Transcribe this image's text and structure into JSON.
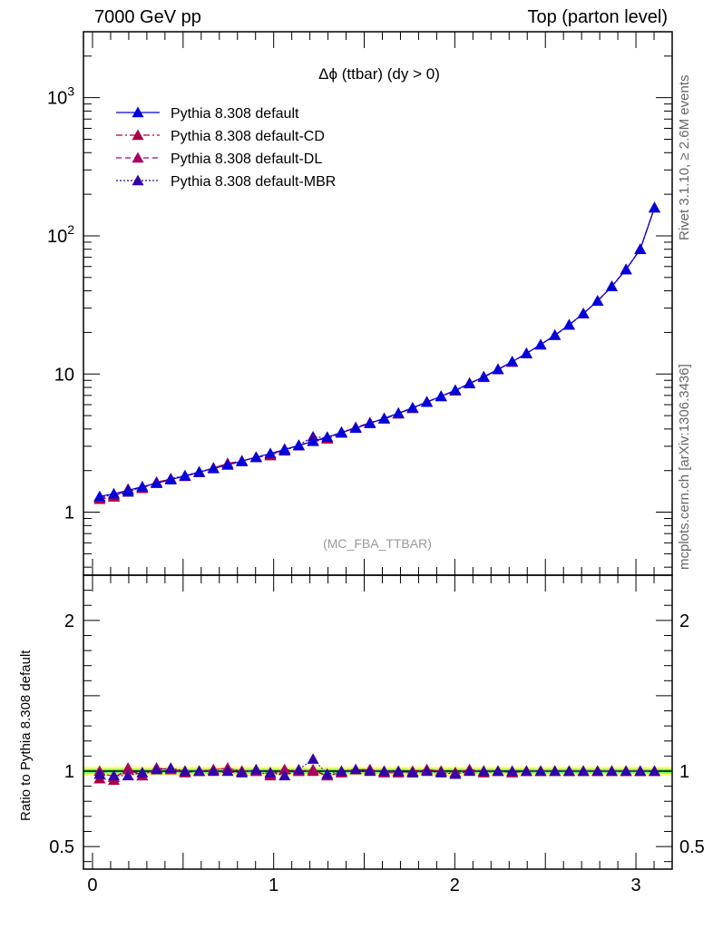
{
  "header": {
    "left": "7000 GeV pp",
    "right": "Top (parton level)"
  },
  "side_labels": {
    "rivet": "Rivet 3.1.10, ≥ 2.6M events",
    "mcplots": "mcplots.cern.ch [arXiv:1306.3436]"
  },
  "colors": {
    "default": "#0000dd",
    "cd": "#aa0044",
    "dl": "#aa0066",
    "mbr": "#3300aa",
    "band_inner": "#66ff66",
    "band_outer": "#ffff66"
  },
  "chart_data": [
    {
      "type": "line",
      "title": "Δϕ (ttbar) (dy > 0)",
      "analysis_label": "(MC_FBA_TTBAR)",
      "yscale": "log",
      "xlim": [
        -0.05,
        3.2
      ],
      "ylim": [
        0.35,
        3000
      ],
      "y_ticks": [
        "1",
        "10",
        "10²",
        "10³"
      ],
      "x": [
        0.0393,
        0.1178,
        0.1963,
        0.2749,
        0.3534,
        0.432,
        0.5105,
        0.589,
        0.6676,
        0.7461,
        0.8247,
        0.9032,
        0.9817,
        1.0603,
        1.1388,
        1.2174,
        1.2959,
        1.3744,
        1.453,
        1.5315,
        1.6101,
        1.6886,
        1.7671,
        1.8457,
        1.9242,
        2.0028,
        2.0813,
        2.1598,
        2.2384,
        2.3169,
        2.3955,
        2.474,
        2.5525,
        2.6311,
        2.7096,
        2.7882,
        2.8667,
        2.9452,
        3.0238,
        3.1023
      ],
      "legend_position": "top-left",
      "series": [
        {
          "name": "Pythia 8.308 default",
          "color_key": "default",
          "dash": "solid",
          "values": [
            1.3,
            1.36,
            1.44,
            1.53,
            1.62,
            1.72,
            1.83,
            1.95,
            2.07,
            2.2,
            2.34,
            2.49,
            2.66,
            2.84,
            3.04,
            3.26,
            3.5,
            3.77,
            4.06,
            4.4,
            4.78,
            5.21,
            5.7,
            6.26,
            6.9,
            7.65,
            8.52,
            9.55,
            10.8,
            12.3,
            14.1,
            16.3,
            19.1,
            22.7,
            27.4,
            33.8,
            43.0,
            57.0,
            80.0,
            160.0
          ]
        },
        {
          "name": "Pythia 8.308 default-CD",
          "color_key": "cd",
          "dash": "dashdot",
          "values": [
            1.24,
            1.29,
            1.47,
            1.49,
            1.65,
            1.73,
            1.82,
            1.94,
            2.09,
            2.25,
            2.35,
            2.5,
            2.57,
            2.86,
            3.03,
            3.27,
            3.4,
            3.74,
            4.1,
            4.43,
            4.73,
            5.16,
            5.7,
            6.3,
            6.89,
            7.57,
            8.6,
            9.46,
            10.8,
            12.2,
            14.1,
            16.3,
            19.1,
            22.6,
            27.4,
            33.8,
            43.0,
            57.1,
            79.8,
            160.0
          ]
        },
        {
          "name": "Pythia 8.308 default-DL",
          "color_key": "dl",
          "dash": "dashed",
          "values": [
            1.27,
            1.3,
            1.46,
            1.49,
            1.65,
            1.73,
            1.82,
            1.94,
            2.09,
            2.25,
            2.35,
            2.5,
            2.6,
            2.86,
            3.03,
            3.3,
            3.4,
            3.75,
            4.1,
            4.45,
            4.73,
            5.16,
            5.66,
            6.3,
            6.89,
            7.57,
            8.6,
            9.5,
            10.8,
            12.2,
            14.1,
            16.3,
            19.1,
            22.6,
            27.4,
            33.8,
            43.0,
            57.1,
            80.0,
            160.0
          ]
        },
        {
          "name": "Pythia 8.308 default-MBR",
          "color_key": "mbr",
          "dash": "dotted",
          "values": [
            1.29,
            1.33,
            1.4,
            1.52,
            1.63,
            1.75,
            1.84,
            1.96,
            2.08,
            2.2,
            2.33,
            2.51,
            2.64,
            2.78,
            3.06,
            3.52,
            3.45,
            3.8,
            4.1,
            4.4,
            4.77,
            5.2,
            5.65,
            6.25,
            6.88,
            7.55,
            8.55,
            9.55,
            10.8,
            12.3,
            14.1,
            16.3,
            19.1,
            22.7,
            27.4,
            33.8,
            43.0,
            57.0,
            80.0,
            160.0
          ]
        }
      ]
    },
    {
      "type": "line",
      "ylabel": "Ratio to Pythia 8.308 default",
      "xlim": [
        -0.05,
        3.2
      ],
      "ylim": [
        0.35,
        2.3
      ],
      "x_ticks": [
        "0",
        "1",
        "2",
        "3"
      ],
      "y_ticks": [
        "0.5",
        "1",
        "2"
      ],
      "reference_line": 1.0,
      "band_inner": [
        0.985,
        1.015
      ],
      "band_outer": [
        0.97,
        1.03
      ],
      "series": [
        {
          "name": "Pythia 8.308 default-CD",
          "color_key": "cd",
          "values": [
            0.95,
            0.94,
            1.02,
            0.97,
            1.02,
            1.01,
            0.99,
            1.0,
            1.01,
            1.02,
            1.0,
            1.0,
            0.97,
            1.01,
            1.0,
            1.0,
            0.97,
            0.99,
            1.01,
            1.01,
            0.99,
            0.99,
            1.0,
            1.01,
            1.0,
            0.99,
            1.01,
            0.99,
            1.0,
            0.99,
            1.0,
            1.0,
            1.0,
            1.0,
            1.0,
            1.0,
            1.0,
            1.0,
            1.0,
            1.0
          ]
        },
        {
          "name": "Pythia 8.308 default-DL",
          "color_key": "dl",
          "values": [
            1.0,
            0.96,
            1.01,
            0.97,
            1.02,
            1.01,
            1.0,
            1.0,
            1.01,
            1.02,
            1.0,
            1.0,
            0.98,
            1.01,
            1.0,
            1.01,
            0.97,
            0.99,
            1.01,
            1.01,
            0.99,
            0.99,
            0.99,
            1.01,
            1.0,
            0.99,
            1.01,
            1.0,
            1.0,
            0.99,
            1.0,
            1.0,
            1.0,
            1.0,
            1.0,
            1.0,
            1.0,
            1.0,
            1.0,
            1.0
          ]
        },
        {
          "name": "Pythia 8.308 default-MBR",
          "color_key": "mbr",
          "values": [
            0.98,
            0.97,
            0.97,
            0.99,
            1.01,
            1.02,
            1.0,
            1.0,
            1.0,
            1.0,
            0.99,
            1.01,
            0.99,
            0.97,
            1.01,
            1.08,
            0.98,
            1.0,
            1.01,
            1.0,
            1.0,
            1.0,
            0.99,
            1.0,
            0.99,
            0.98,
            1.0,
            1.0,
            1.0,
            1.0,
            1.0,
            1.0,
            1.0,
            1.0,
            1.0,
            1.0,
            1.0,
            1.0,
            1.0,
            1.0
          ]
        }
      ]
    }
  ]
}
